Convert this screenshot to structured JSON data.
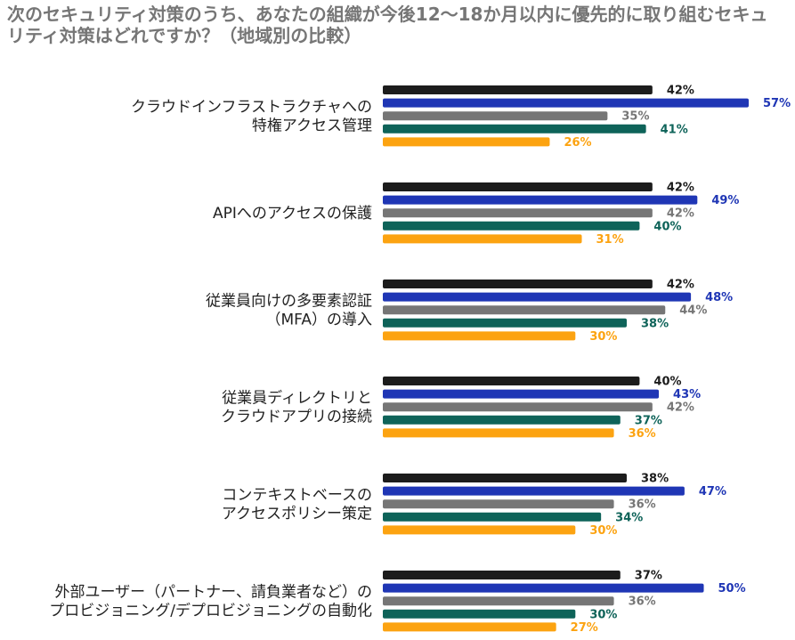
{
  "chart_data": {
    "type": "bar",
    "orientation": "horizontal",
    "title": "次のセキュリティ対策のうち、あなたの組織が今後12〜18か月以内に優先的に取り組むセキュリティ対策はどれですか？（地域別の比較）",
    "xlim": [
      0,
      60
    ],
    "value_suffix": "%",
    "grid": false,
    "legend": "none",
    "categories": [
      {
        "lines": [
          "クラウドインフラストラクチャへの",
          "特権アクセス管理"
        ]
      },
      {
        "lines": [
          "APIへのアクセスの保護"
        ]
      },
      {
        "lines": [
          "従業員向けの多要素認証",
          "（MFA）の導入"
        ]
      },
      {
        "lines": [
          "従業員ディレクトリと",
          "クラウドアプリの接続"
        ]
      },
      {
        "lines": [
          "コンテキストベースの",
          "アクセスポリシー策定"
        ]
      },
      {
        "lines": [
          "外部ユーザー（パートナー、請負業者など）の",
          "プロビジョニング/デプロビジョニングの自動化"
        ]
      }
    ],
    "series": [
      {
        "color": "#1c1c1c",
        "label_color": "#1c1c1c",
        "values": [
          42,
          42,
          42,
          40,
          38,
          37
        ]
      },
      {
        "color": "#1f36b5",
        "label_color": "#1f36b5",
        "values": [
          57,
          49,
          48,
          43,
          47,
          50
        ]
      },
      {
        "color": "#767676",
        "label_color": "#767676",
        "values": [
          35,
          42,
          44,
          42,
          36,
          36
        ]
      },
      {
        "color": "#0e6359",
        "label_color": "#0e6359",
        "values": [
          41,
          40,
          38,
          37,
          34,
          30
        ]
      },
      {
        "color": "#fca311",
        "label_color": "#fca311",
        "values": [
          26,
          31,
          30,
          36,
          30,
          27
        ]
      }
    ]
  }
}
